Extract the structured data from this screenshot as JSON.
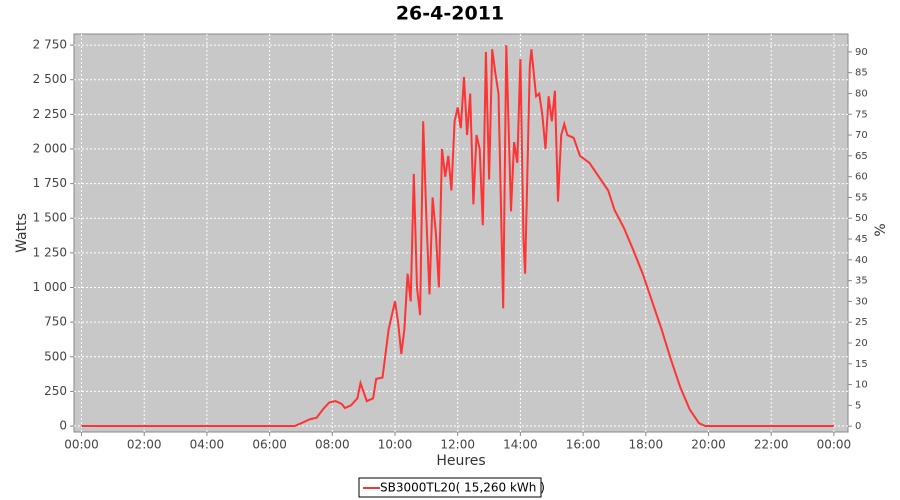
{
  "chart_data": {
    "type": "line",
    "title": "26-4-2011",
    "x_label": "Heures",
    "y_label": "Watts",
    "y2_label": "%",
    "grid": true,
    "legend": "bottom",
    "xlim": [
      -0.24,
      24.45
    ],
    "xticks": [
      {
        "value": 0,
        "label": "00:00"
      },
      {
        "value": 2,
        "label": "02:00"
      },
      {
        "value": 4,
        "label": "04:00"
      },
      {
        "value": 6,
        "label": "06:00"
      },
      {
        "value": 8,
        "label": "08:00"
      },
      {
        "value": 10,
        "label": "10:00"
      },
      {
        "value": 12,
        "label": "12:00"
      },
      {
        "value": 14,
        "label": "14:00"
      },
      {
        "value": 16,
        "label": "16:00"
      },
      {
        "value": 18,
        "label": "18:00"
      },
      {
        "value": 20,
        "label": "20:00"
      },
      {
        "value": 22,
        "label": "22:00"
      },
      {
        "value": 24,
        "label": "00:00"
      }
    ],
    "ylim": [
      -43,
      2830
    ],
    "yticks": [
      0,
      250,
      500,
      750,
      {
        "value": 1000,
        "label": "1 000"
      },
      {
        "value": 1250,
        "label": "1 250"
      },
      {
        "value": 1500,
        "label": "1 500"
      },
      {
        "value": 1750,
        "label": "1 750"
      },
      {
        "value": 2000,
        "label": "2 000"
      },
      {
        "value": 2250,
        "label": "2 250"
      },
      {
        "value": 2500,
        "label": "2 500"
      },
      {
        "value": 2750,
        "label": "2 750"
      }
    ],
    "y2lim": [
      -1.4,
      94.3
    ],
    "y2ticks": [
      0,
      5,
      10,
      15,
      20,
      25,
      30,
      35,
      40,
      45,
      50,
      55,
      60,
      65,
      70,
      75,
      80,
      85,
      90
    ],
    "x": [
      0,
      6.8,
      7.0,
      7.3,
      7.5,
      7.7,
      7.9,
      8.1,
      8.3,
      8.4,
      8.6,
      8.8,
      8.9,
      9.1,
      9.3,
      9.4,
      9.6,
      9.8,
      10.0,
      10.1,
      10.2,
      10.3,
      10.4,
      10.5,
      10.6,
      10.7,
      10.8,
      10.9,
      11.0,
      11.1,
      11.2,
      11.3,
      11.4,
      11.5,
      11.6,
      11.7,
      11.8,
      11.9,
      12.0,
      12.1,
      12.2,
      12.3,
      12.4,
      12.5,
      12.6,
      12.7,
      12.8,
      12.9,
      13.0,
      13.1,
      13.2,
      13.3,
      13.45,
      13.55,
      13.7,
      13.8,
      13.9,
      14.0,
      14.1,
      14.15,
      14.3,
      14.35,
      14.5,
      14.6,
      14.7,
      14.8,
      14.9,
      15.0,
      15.1,
      15.2,
      15.3,
      15.4,
      15.5,
      15.7,
      15.9,
      16.2,
      16.5,
      16.8,
      17.0,
      17.3,
      17.6,
      17.9,
      18.2,
      18.5,
      18.8,
      19.1,
      19.4,
      19.7,
      19.9,
      24
    ],
    "series": [
      {
        "name": "SB3000TL20( 15,260 kWh )",
        "color": "#ff3333",
        "values": [
          0,
          0,
          20,
          50,
          60,
          120,
          170,
          180,
          160,
          130,
          150,
          200,
          310,
          180,
          200,
          340,
          350,
          700,
          900,
          750,
          520,
          700,
          1100,
          900,
          1820,
          1000,
          800,
          2200,
          1500,
          950,
          1650,
          1400,
          1000,
          2000,
          1800,
          1950,
          1700,
          2200,
          2300,
          2150,
          2520,
          2100,
          2400,
          1600,
          2100,
          2000,
          1450,
          2700,
          1780,
          2720,
          2550,
          2400,
          850,
          2750,
          1550,
          2050,
          1900,
          2650,
          1350,
          1100,
          2600,
          2720,
          2380,
          2400,
          2250,
          2000,
          2380,
          2200,
          2420,
          1620,
          2100,
          2180,
          2100,
          2080,
          1950,
          1900,
          1800,
          1700,
          1560,
          1430,
          1270,
          1100,
          900,
          700,
          480,
          280,
          120,
          20,
          0,
          0
        ]
      }
    ]
  }
}
